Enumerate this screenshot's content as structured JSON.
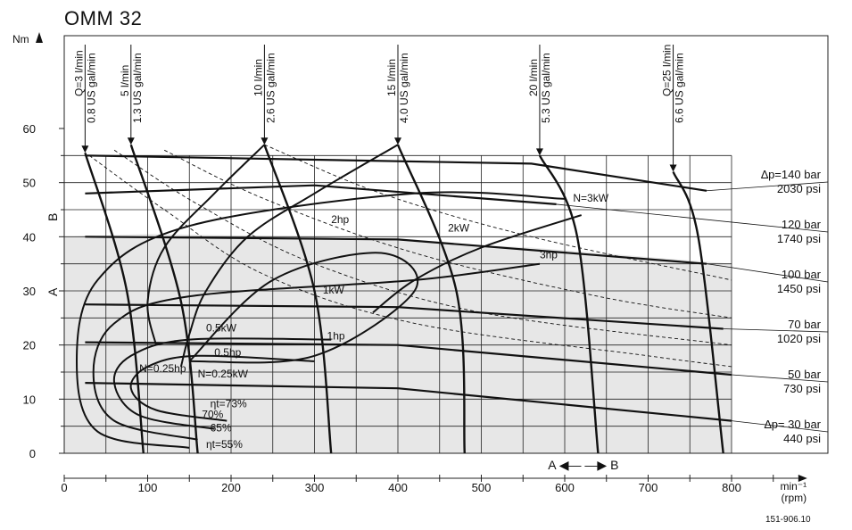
{
  "chart_data": {
    "type": "line",
    "title": "OMM 32",
    "reference": "151-906.10",
    "xlabel": "min⁻¹",
    "xlabel_sub": "(rpm)",
    "ylabel": "Nm",
    "xlim": [
      0,
      900
    ],
    "ylim": [
      0,
      77
    ],
    "x_ticks": [
      0,
      100,
      200,
      300,
      400,
      500,
      600,
      700,
      800
    ],
    "y_ticks": [
      0,
      10,
      20,
      30,
      40,
      50,
      60
    ],
    "grid": true,
    "direction_labels": {
      "a_to_b": "A ◀— —▶ B",
      "a": "A",
      "b": "B"
    },
    "pressure_lines": [
      {
        "bar": "∆p=140 bar",
        "psi": "2030 psi",
        "points": [
          [
            25,
            55
          ],
          [
            560,
            53.5
          ],
          [
            770,
            48.5
          ]
        ]
      },
      {
        "bar": "120 bar",
        "psi": "1740 psi",
        "points": [
          [
            25,
            48
          ],
          [
            300,
            49.5
          ],
          [
            590,
            46
          ]
        ]
      },
      {
        "bar": "100 bar",
        "psi": "1450 psi",
        "points": [
          [
            25,
            40
          ],
          [
            400,
            39.5
          ],
          [
            770,
            35
          ]
        ]
      },
      {
        "bar": "70 bar",
        "psi": "1020 psi",
        "points": [
          [
            25,
            27.5
          ],
          [
            400,
            27
          ],
          [
            790,
            23
          ]
        ]
      },
      {
        "bar": "50 bar",
        "psi": "730 psi",
        "points": [
          [
            25,
            20.5
          ],
          [
            400,
            20
          ],
          [
            800,
            14.5
          ]
        ]
      },
      {
        "bar": "∆p= 30 bar",
        "psi": "440 psi",
        "points": [
          [
            25,
            13
          ],
          [
            400,
            12
          ],
          [
            800,
            6
          ]
        ]
      }
    ],
    "flow_lines": [
      {
        "lpm": "Q=3 l/min",
        "gpm": "0.8 US gal/min",
        "points": [
          [
            25,
            55.5
          ],
          [
            75,
            30
          ],
          [
            95,
            0
          ]
        ]
      },
      {
        "lpm": "5 l/min",
        "gpm": "1.3 US gal/min",
        "points": [
          [
            80,
            57
          ],
          [
            140,
            28
          ],
          [
            160,
            0
          ]
        ]
      },
      {
        "lpm": "10 l/min",
        "gpm": "2.6 US gal/min",
        "points": [
          [
            240,
            57
          ],
          [
            300,
            30
          ],
          [
            320,
            0
          ]
        ]
      },
      {
        "lpm": "15 l/min",
        "gpm": "4.0 US gal/min",
        "points": [
          [
            400,
            57
          ],
          [
            470,
            30
          ],
          [
            480,
            0
          ]
        ]
      },
      {
        "lpm": "20 l/min",
        "gpm": "5.3 US gal/min",
        "points": [
          [
            570,
            55
          ],
          [
            615,
            40
          ],
          [
            640,
            0
          ]
        ]
      },
      {
        "lpm": "Q=25 l/min",
        "gpm": "6.6 US gal/min",
        "points": [
          [
            730,
            52
          ],
          [
            760,
            40
          ],
          [
            790,
            0
          ]
        ]
      }
    ],
    "power_labels": [
      "N=3kW",
      "3hp",
      "2kW",
      "2hp",
      "1kW",
      "1hp",
      "0.5kW",
      "0.5hp",
      "N=0.25hp",
      "N=0.25kW"
    ],
    "efficiency_labels": [
      "ηt=73%",
      "70%",
      "65%",
      "ηt=55%"
    ]
  }
}
